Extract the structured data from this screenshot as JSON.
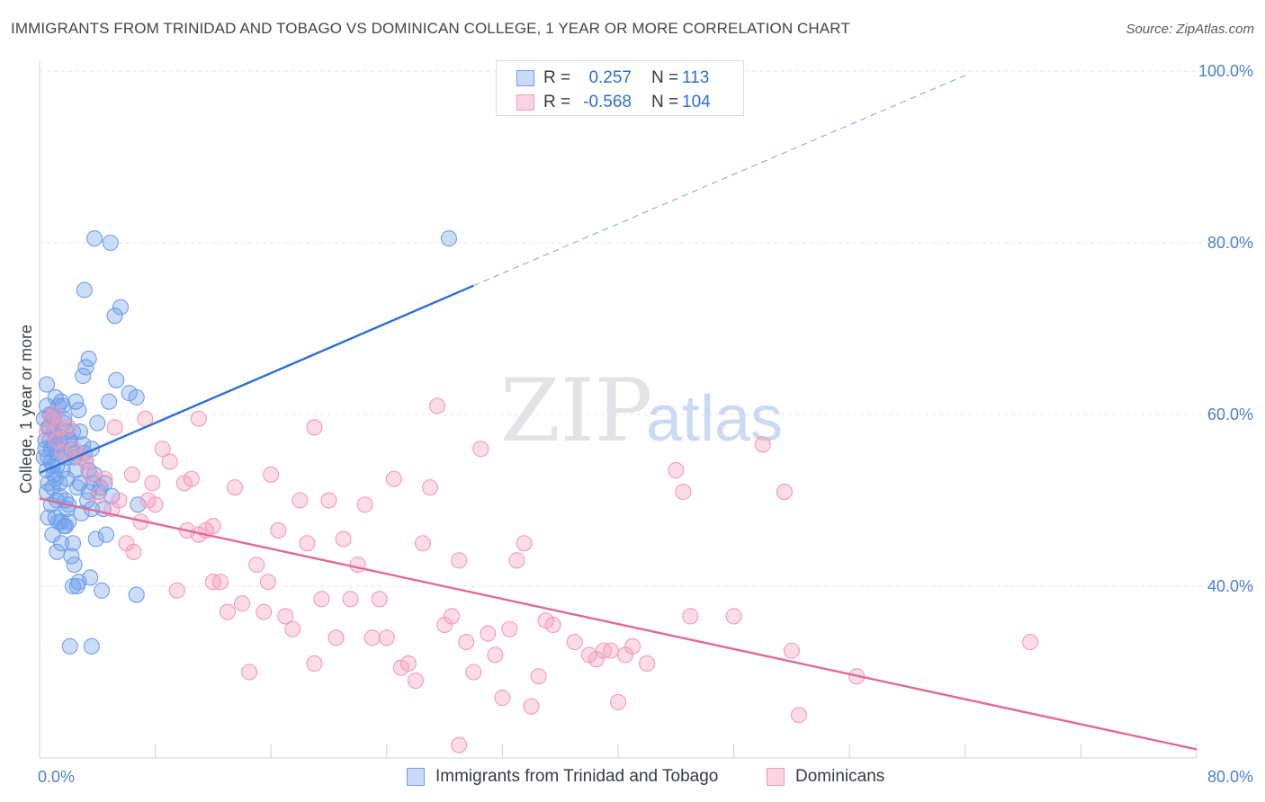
{
  "header": {
    "title": "IMMIGRANTS FROM TRINIDAD AND TOBAGO VS DOMINICAN COLLEGE, 1 YEAR OR MORE CORRELATION CHART",
    "source": "Source: ZipAtlas.com"
  },
  "legend": {
    "rows": [
      {
        "r_label": "R =",
        "r_value": "0.257",
        "n_label": "N =",
        "n_value": "113",
        "color": "#6d9eeb"
      },
      {
        "r_label": "R =",
        "r_value": "-0.568",
        "n_label": "N =",
        "n_value": "104",
        "color": "#f49ab8"
      }
    ]
  },
  "watermark": {
    "zip": "ZIP",
    "atlas": "atlas"
  },
  "chart_data": {
    "type": "scatter",
    "title": "IMMIGRANTS FROM TRINIDAD AND TOBAGO VS DOMINICAN COLLEGE, 1 YEAR OR MORE CORRELATION CHART",
    "xlabel": "",
    "ylabel": "College, 1 year or more",
    "xlim": [
      0,
      80
    ],
    "ylim": [
      20,
      100
    ],
    "x_tick_labels": [
      "0.0%",
      "80.0%"
    ],
    "y_ticks": [
      40,
      60,
      80,
      100
    ],
    "y_tick_labels": [
      "40.0%",
      "60.0%",
      "80.0%",
      "100.0%"
    ],
    "grid": true,
    "legend_position": "top-center",
    "series": [
      {
        "name": "Immigrants from Trinidad and Tobago",
        "color": "#6d9eeb",
        "line_color": "#2e6fd6",
        "trend": {
          "x_start": 0,
          "y_start": 53.2,
          "x_solid_end": 30,
          "y_solid_end": 75.0,
          "x_dash_end": 64,
          "y_dash_end": 99.5
        },
        "points": [
          [
            0.3,
            59.5
          ],
          [
            0.4,
            57.0
          ],
          [
            0.5,
            61.0
          ],
          [
            0.6,
            55.0
          ],
          [
            0.7,
            58.5
          ],
          [
            0.8,
            56.0
          ],
          [
            0.9,
            60.0
          ],
          [
            1.0,
            53.0
          ],
          [
            1.1,
            57.5
          ],
          [
            1.2,
            55.5
          ],
          [
            0.5,
            63.5
          ],
          [
            0.6,
            52.0
          ],
          [
            0.8,
            54.5
          ],
          [
            1.0,
            58.0
          ],
          [
            1.2,
            50.0
          ],
          [
            1.4,
            56.5
          ],
          [
            1.5,
            61.5
          ],
          [
            1.6,
            53.5
          ],
          [
            1.7,
            59.0
          ],
          [
            1.8,
            55.0
          ],
          [
            0.9,
            51.5
          ],
          [
            1.1,
            48.0
          ],
          [
            1.3,
            47.5
          ],
          [
            1.5,
            45.0
          ],
          [
            1.7,
            47.0
          ],
          [
            1.9,
            52.5
          ],
          [
            2.1,
            57.0
          ],
          [
            2.3,
            58.0
          ],
          [
            2.5,
            55.5
          ],
          [
            2.7,
            60.5
          ],
          [
            1.6,
            61.0
          ],
          [
            2.0,
            49.5
          ],
          [
            2.2,
            43.5
          ],
          [
            2.4,
            42.5
          ],
          [
            2.6,
            40.0
          ],
          [
            2.8,
            52.0
          ],
          [
            3.0,
            56.5
          ],
          [
            3.2,
            54.5
          ],
          [
            3.4,
            51.0
          ],
          [
            3.6,
            49.0
          ],
          [
            3.0,
            64.5
          ],
          [
            3.2,
            65.5
          ],
          [
            3.4,
            66.5
          ],
          [
            3.6,
            56.0
          ],
          [
            3.8,
            53.0
          ],
          [
            4.0,
            59.0
          ],
          [
            4.2,
            51.5
          ],
          [
            4.4,
            49.0
          ],
          [
            4.6,
            46.0
          ],
          [
            4.8,
            61.5
          ],
          [
            3.8,
            80.5
          ],
          [
            4.9,
            80.0
          ],
          [
            3.1,
            74.5
          ],
          [
            5.2,
            71.5
          ],
          [
            5.6,
            72.5
          ],
          [
            5.3,
            64.0
          ],
          [
            6.2,
            62.5
          ],
          [
            6.7,
            62.0
          ],
          [
            6.8,
            49.5
          ],
          [
            6.7,
            39.0
          ],
          [
            2.1,
            33.0
          ],
          [
            3.6,
            33.0
          ],
          [
            2.3,
            40.0
          ],
          [
            4.3,
            39.5
          ],
          [
            2.7,
            40.5
          ],
          [
            3.5,
            41.0
          ],
          [
            1.2,
            54.0
          ],
          [
            1.4,
            52.0
          ],
          [
            1.8,
            50.0
          ],
          [
            2.0,
            47.5
          ],
          [
            0.4,
            56.0
          ],
          [
            0.6,
            58.5
          ],
          [
            0.7,
            60.0
          ],
          [
            0.9,
            54.0
          ],
          [
            1.0,
            56.5
          ],
          [
            1.3,
            57.5
          ],
          [
            1.6,
            55.5
          ],
          [
            1.9,
            58.0
          ],
          [
            2.2,
            56.0
          ],
          [
            2.5,
            53.5
          ],
          [
            0.5,
            51.0
          ],
          [
            0.8,
            49.5
          ],
          [
            1.1,
            52.5
          ],
          [
            1.4,
            50.5
          ],
          [
            1.8,
            47.0
          ],
          [
            2.3,
            45.0
          ],
          [
            2.9,
            48.5
          ],
          [
            3.3,
            50.0
          ],
          [
            3.7,
            52.0
          ],
          [
            4.1,
            51.0
          ],
          [
            0.3,
            55.0
          ],
          [
            0.5,
            53.5
          ],
          [
            0.7,
            57.0
          ],
          [
            1.0,
            59.5
          ],
          [
            1.3,
            61.0
          ],
          [
            1.7,
            59.5
          ],
          [
            2.0,
            57.0
          ],
          [
            2.4,
            55.0
          ],
          [
            2.8,
            58.0
          ],
          [
            3.1,
            55.5
          ],
          [
            0.6,
            48.0
          ],
          [
            0.9,
            46.0
          ],
          [
            1.2,
            44.0
          ],
          [
            1.5,
            47.5
          ],
          [
            1.9,
            49.0
          ],
          [
            2.6,
            51.5
          ],
          [
            3.4,
            53.5
          ],
          [
            4.5,
            52.0
          ],
          [
            5.0,
            50.5
          ],
          [
            28.3,
            80.5
          ],
          [
            1.1,
            62.0
          ],
          [
            2.5,
            61.5
          ],
          [
            3.9,
            45.5
          ]
        ]
      },
      {
        "name": "Dominicans",
        "color": "#f49ab8",
        "line_color": "#e06a9a",
        "trend": {
          "x_start": 0,
          "y_start": 50.2,
          "x_end": 80,
          "y_end": 21.0
        },
        "points": [
          [
            0.5,
            58.0
          ],
          [
            0.8,
            59.5
          ],
          [
            1.2,
            57.0
          ],
          [
            1.6,
            55.5
          ],
          [
            2.0,
            58.5
          ],
          [
            2.4,
            56.0
          ],
          [
            2.8,
            55.0
          ],
          [
            3.2,
            54.5
          ],
          [
            1.0,
            60.0
          ],
          [
            1.4,
            58.5
          ],
          [
            3.5,
            53.0
          ],
          [
            4.0,
            50.5
          ],
          [
            4.5,
            52.5
          ],
          [
            5.0,
            49.0
          ],
          [
            5.5,
            50.0
          ],
          [
            6.0,
            45.0
          ],
          [
            6.5,
            44.0
          ],
          [
            7.0,
            47.5
          ],
          [
            7.5,
            50.0
          ],
          [
            8.0,
            49.5
          ],
          [
            5.2,
            58.5
          ],
          [
            6.4,
            53.0
          ],
          [
            7.3,
            59.5
          ],
          [
            8.5,
            56.0
          ],
          [
            9.0,
            54.5
          ],
          [
            10.0,
            52.0
          ],
          [
            10.5,
            52.5
          ],
          [
            11.0,
            46.0
          ],
          [
            11.5,
            46.5
          ],
          [
            12.0,
            40.5
          ],
          [
            9.5,
            39.5
          ],
          [
            11.0,
            59.5
          ],
          [
            12.5,
            40.5
          ],
          [
            12.0,
            47.0
          ],
          [
            13.5,
            51.5
          ],
          [
            14.0,
            38.0
          ],
          [
            15.0,
            42.5
          ],
          [
            15.5,
            37.0
          ],
          [
            16.0,
            53.0
          ],
          [
            16.5,
            46.5
          ],
          [
            13.0,
            37.0
          ],
          [
            14.5,
            30.0
          ],
          [
            17.0,
            36.5
          ],
          [
            17.5,
            35.0
          ],
          [
            18.0,
            50.0
          ],
          [
            18.5,
            45.0
          ],
          [
            19.0,
            31.0
          ],
          [
            19.5,
            38.5
          ],
          [
            20.0,
            50.0
          ],
          [
            20.5,
            34.0
          ],
          [
            19.0,
            58.5
          ],
          [
            21.0,
            45.5
          ],
          [
            21.5,
            38.5
          ],
          [
            22.0,
            42.5
          ],
          [
            22.5,
            49.5
          ],
          [
            23.0,
            34.0
          ],
          [
            23.5,
            38.5
          ],
          [
            24.0,
            34.0
          ],
          [
            24.5,
            52.5
          ],
          [
            25.0,
            30.5
          ],
          [
            25.5,
            31.0
          ],
          [
            26.0,
            29.0
          ],
          [
            26.5,
            45.0
          ],
          [
            27.0,
            51.5
          ],
          [
            27.5,
            61.0
          ],
          [
            28.0,
            35.5
          ],
          [
            28.5,
            36.5
          ],
          [
            29.0,
            43.0
          ],
          [
            29.5,
            33.5
          ],
          [
            30.0,
            30.0
          ],
          [
            30.5,
            56.0
          ],
          [
            31.0,
            34.5
          ],
          [
            31.5,
            32.0
          ],
          [
            32.0,
            27.0
          ],
          [
            32.5,
            35.0
          ],
          [
            33.0,
            43.0
          ],
          [
            33.5,
            45.0
          ],
          [
            34.0,
            26.0
          ],
          [
            34.5,
            29.5
          ],
          [
            35.0,
            36.0
          ],
          [
            35.5,
            35.5
          ],
          [
            37.0,
            33.5
          ],
          [
            38.0,
            32.0
          ],
          [
            38.5,
            31.5
          ],
          [
            39.0,
            32.5
          ],
          [
            39.5,
            32.5
          ],
          [
            40.0,
            26.5
          ],
          [
            40.5,
            32.0
          ],
          [
            41.0,
            33.0
          ],
          [
            42.0,
            31.0
          ],
          [
            44.0,
            53.5
          ],
          [
            44.5,
            51.0
          ],
          [
            45.0,
            36.5
          ],
          [
            48.0,
            36.5
          ],
          [
            50.0,
            56.5
          ],
          [
            51.5,
            51.0
          ],
          [
            52.0,
            32.5
          ],
          [
            52.5,
            25.0
          ],
          [
            56.5,
            29.5
          ],
          [
            68.5,
            33.5
          ],
          [
            29.0,
            21.5
          ],
          [
            10.2,
            46.5
          ],
          [
            15.8,
            40.5
          ],
          [
            7.8,
            52.0
          ]
        ]
      }
    ]
  },
  "bottom_legend": [
    {
      "label": "Immigrants from Trinidad and Tobago"
    },
    {
      "label": "Dominicans"
    }
  ]
}
